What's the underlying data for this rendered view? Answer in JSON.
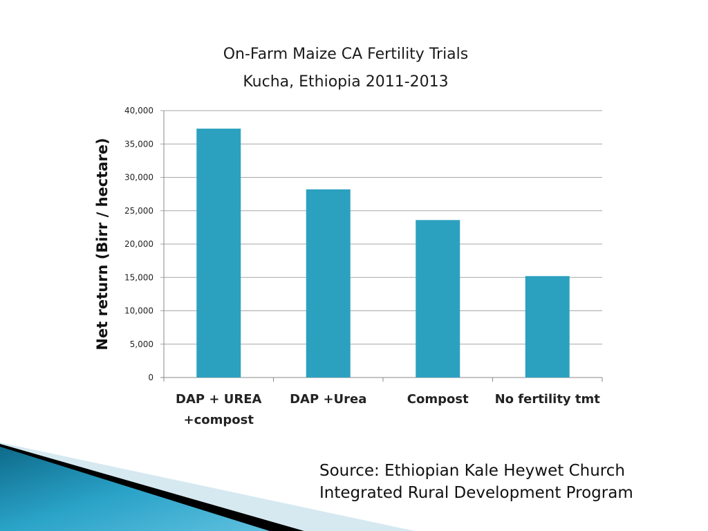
{
  "chart_data": {
    "type": "bar",
    "title": "On-Farm Maize CA Fertility Trials",
    "subtitle": "Kucha, Ethiopia 2011-2013",
    "xlabel": "",
    "ylabel": "Net return (Birr / hectare)",
    "categories": [
      [
        "DAP + UREA",
        "+compost"
      ],
      [
        "DAP +Urea"
      ],
      [
        "Compost"
      ],
      [
        "No fertility tmt"
      ]
    ],
    "values": [
      37300,
      28200,
      23600,
      15200
    ],
    "ylim": [
      0,
      40000
    ],
    "yticks": [
      "0",
      "5,000",
      "10,000",
      "15,000",
      "20,000",
      "25,000",
      "30,000",
      "35,000",
      "40,000"
    ],
    "grid": true,
    "bar_color": "#2ca1bf"
  },
  "source": {
    "line1": "Source:  Ethiopian Kale Heywet Church",
    "line2": "Integrated Rural Development Program"
  }
}
